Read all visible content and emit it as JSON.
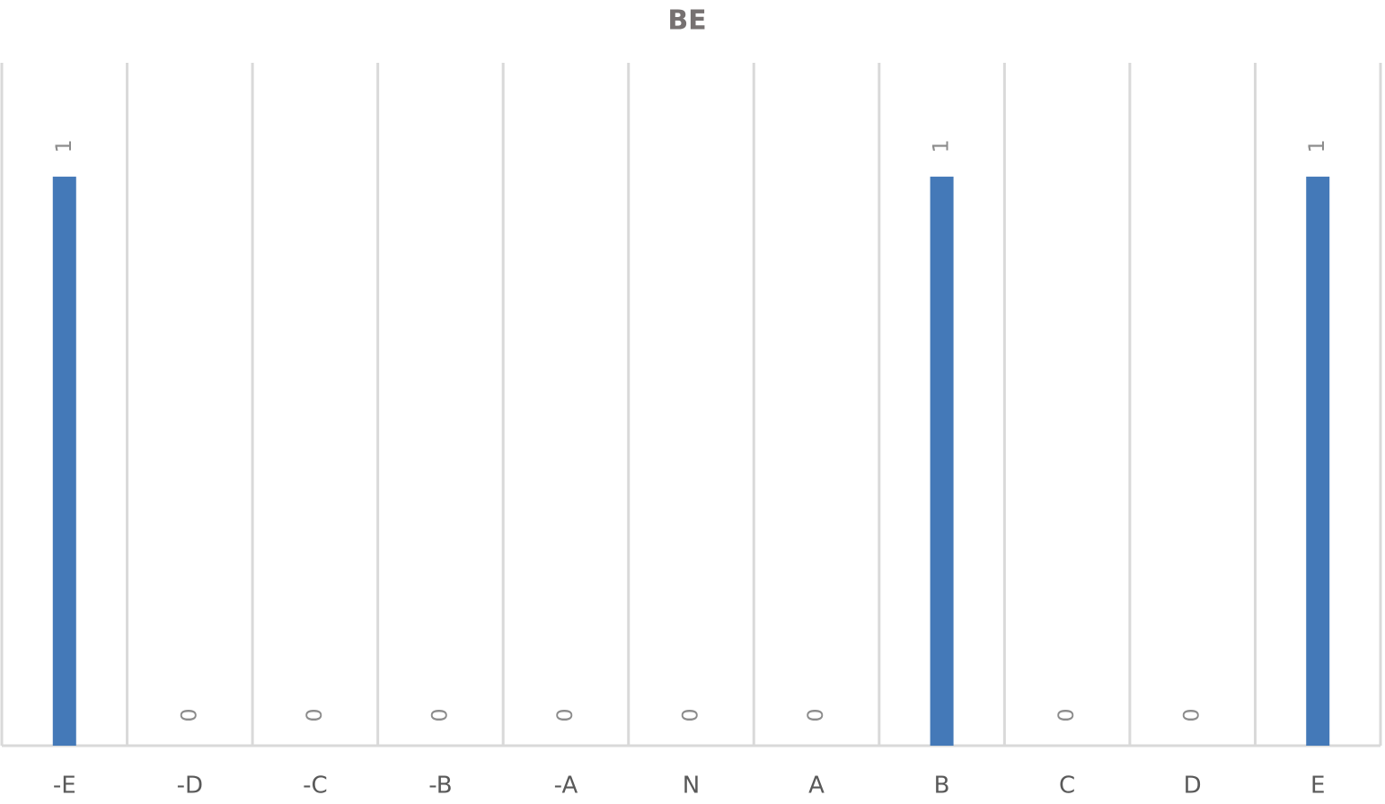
{
  "chart_data": {
    "type": "bar",
    "title": "BE",
    "categories": [
      "-E",
      "-D",
      "-C",
      "-B",
      "-A",
      "N",
      "A",
      "B",
      "C",
      "D",
      "E"
    ],
    "values": [
      1,
      0,
      0,
      0,
      0,
      0,
      0,
      1,
      0,
      0,
      1
    ],
    "color": "#4479b8",
    "ylim": [
      0,
      1.2
    ],
    "category_grid": true,
    "data_labels": true
  }
}
